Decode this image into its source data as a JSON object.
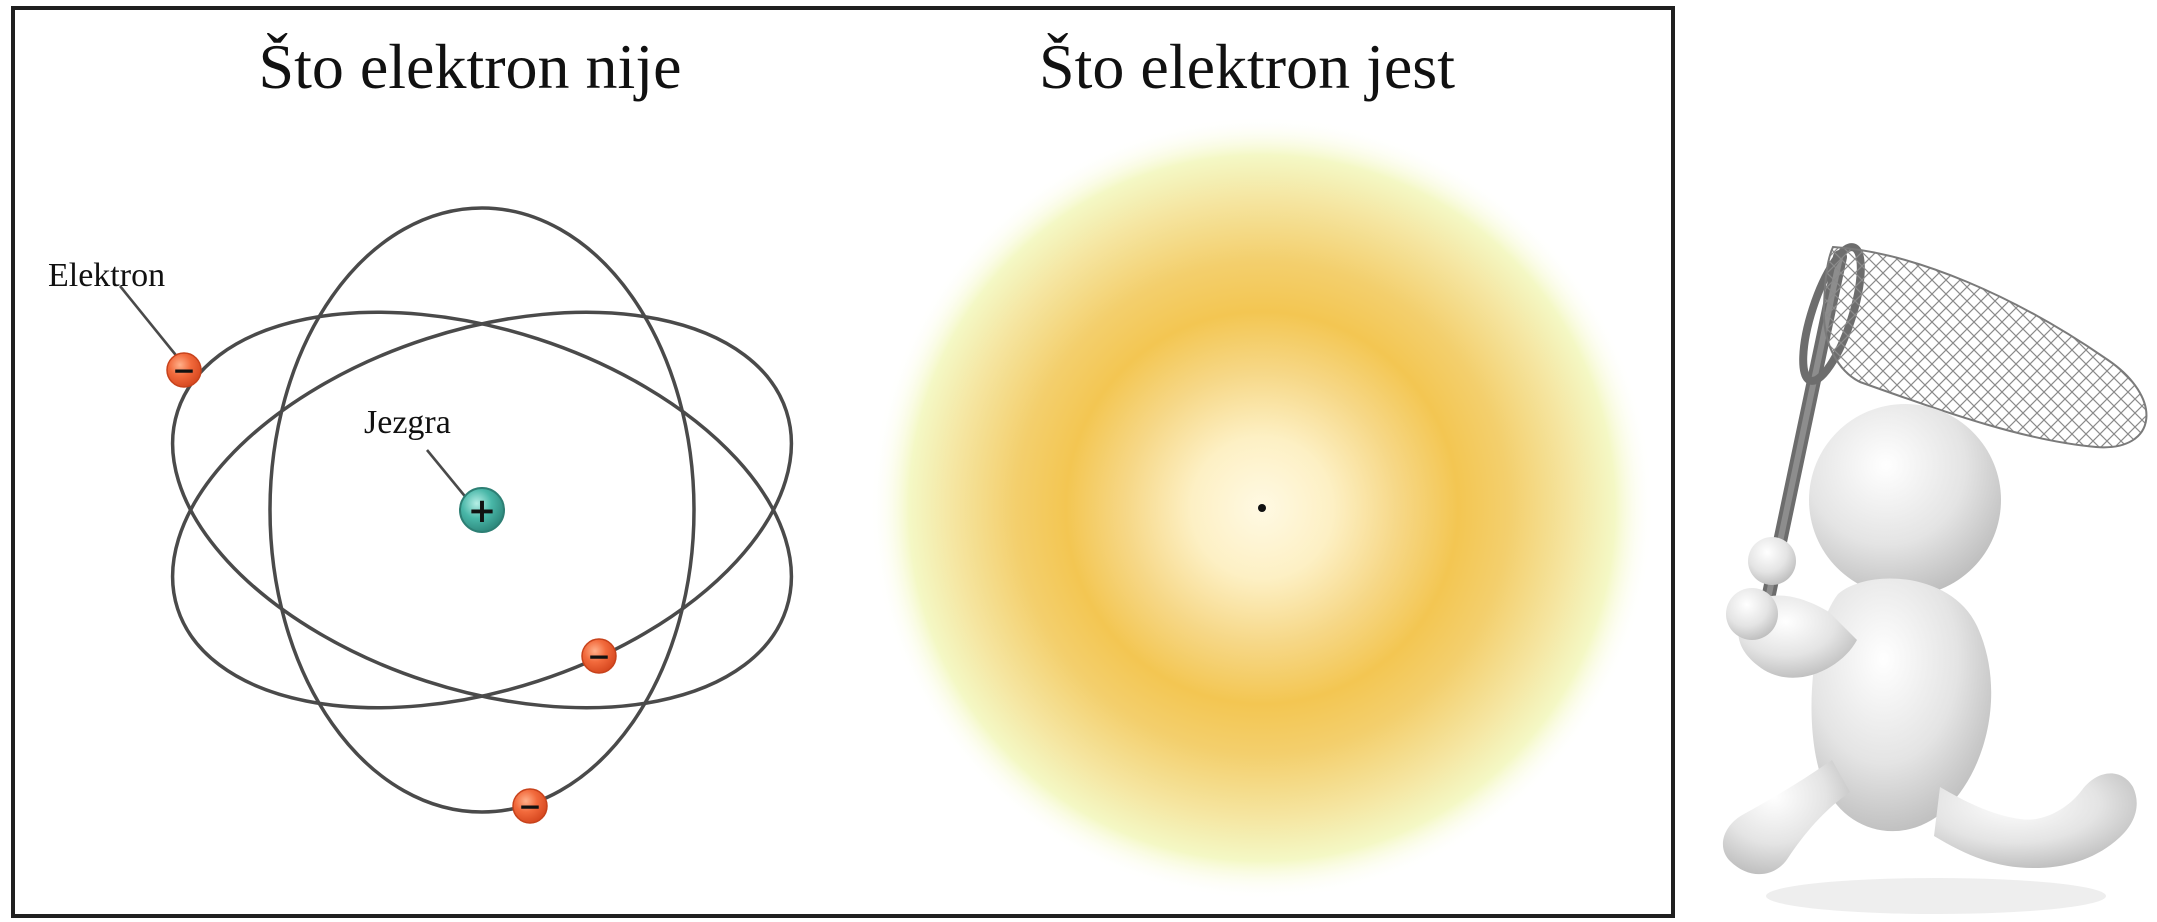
{
  "panels": {
    "left": {
      "title": "Što elektron nije",
      "labels": {
        "electron": "Elektron",
        "nucleus": "Jezgra"
      },
      "symbols": {
        "electron": "−",
        "nucleus": "+"
      }
    },
    "right": {
      "title": "Što elektron jest"
    }
  },
  "colors": {
    "frame": "#1f1f1f",
    "orbit": "#4a4a4a",
    "electron": "#f26a3c",
    "nucleus": "#49b7a8",
    "cloud_outer": "#f7fbc7",
    "cloud_ring": "#f3c75a",
    "cloud_center": "#fff7d9"
  }
}
